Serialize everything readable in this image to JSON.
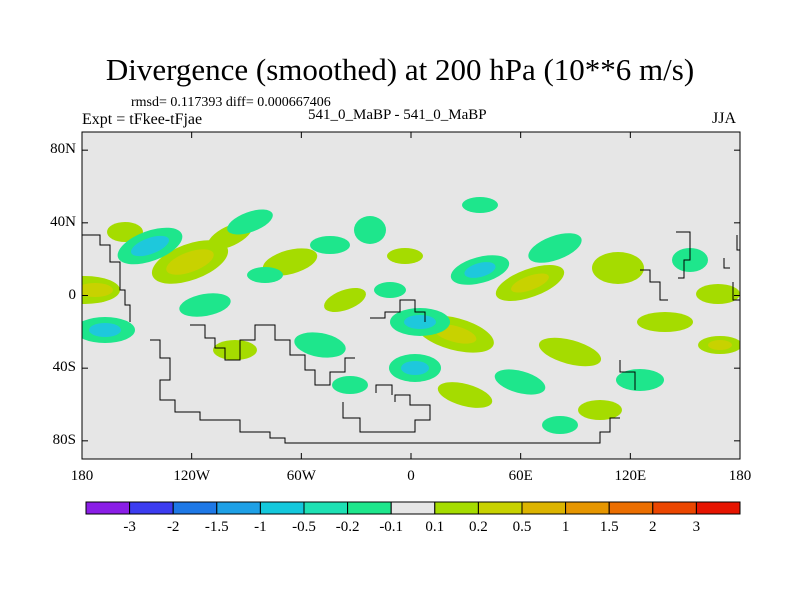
{
  "title": "Divergence (smoothed) at 200 hPa (10**6 m/s)",
  "stats": "rmsd= 0.117393 diff= 0.000667406",
  "experiment": "Expt = tFkee-tFjae",
  "center_label": "541_0_MaBP - 541_0_MaBP",
  "season": "JJA",
  "map": {
    "projection": "cylindrical equidistant",
    "lon_range": [
      -180,
      180
    ],
    "lat_range": [
      -90,
      90
    ],
    "background_color": "#e6e6e6",
    "y_ticks": [
      {
        "lat": 80,
        "label": "80N"
      },
      {
        "lat": 40,
        "label": "40N"
      },
      {
        "lat": 0,
        "label": "0"
      },
      {
        "lat": -40,
        "label": "40S"
      },
      {
        "lat": -80,
        "label": "80S"
      }
    ],
    "x_ticks": [
      {
        "lon": -180,
        "label": "180"
      },
      {
        "lon": -120,
        "label": "120W"
      },
      {
        "lon": -60,
        "label": "60W"
      },
      {
        "lon": 0,
        "label": "0"
      },
      {
        "lon": 60,
        "label": "60E"
      },
      {
        "lon": 120,
        "label": "120E"
      },
      {
        "lon": 180,
        "label": "180"
      }
    ]
  },
  "colorbar": {
    "colors": [
      "#8a1ee6",
      "#3c3cf0",
      "#1e78e6",
      "#1ea0e6",
      "#14c8dc",
      "#1ee1b4",
      "#1ee68c",
      "#e6e6e6",
      "#a5dc00",
      "#c8d200",
      "#dcb400",
      "#e69600",
      "#eb6e00",
      "#eb4600",
      "#e61400"
    ],
    "labels": [
      "-3",
      "-2",
      "-1.5",
      "-1",
      "-0.5",
      "-0.2",
      "-0.1",
      "0.1",
      "0.2",
      "0.5",
      "1",
      "1.5",
      "2",
      "3"
    ]
  }
}
